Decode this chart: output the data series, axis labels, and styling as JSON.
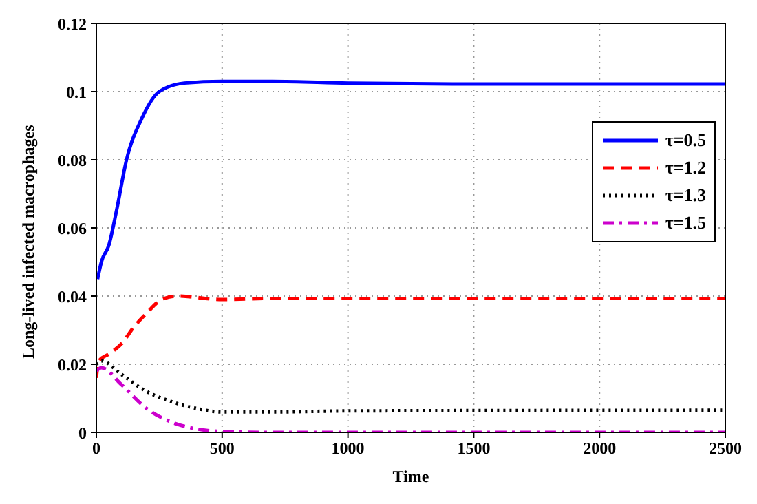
{
  "chart_data": {
    "type": "line",
    "xlabel": "Time",
    "ylabel": "Long-lived infected macrophages",
    "xlim": [
      0,
      2500
    ],
    "xticks": [
      0,
      500,
      1000,
      1500,
      2000,
      2500
    ],
    "ylim": [
      0,
      0.12
    ],
    "yticks": [
      0,
      0.02,
      0.04,
      0.06,
      0.08,
      0.1,
      0.12
    ],
    "grid": true,
    "legend": "right",
    "series": [
      {
        "name": "τ=0.5",
        "color": "#0000ff",
        "line_style": "solid",
        "x": [
          5,
          20,
          50,
          80,
          120,
          180,
          250,
          350,
          500,
          700,
          1000,
          1500,
          2500
        ],
        "values": [
          0.045,
          0.05,
          0.055,
          0.065,
          0.08,
          0.092,
          0.1,
          0.1025,
          0.103,
          0.103,
          0.1025,
          0.1022,
          0.1022
        ]
      },
      {
        "name": "τ=1.2",
        "color": "#ff0000",
        "line_style": "dashed",
        "x": [
          0,
          10,
          50,
          100,
          150,
          200,
          260,
          320,
          500,
          700,
          1000,
          2500
        ],
        "values": [
          0.016,
          0.021,
          0.023,
          0.026,
          0.031,
          0.035,
          0.039,
          0.04,
          0.039,
          0.0393,
          0.0393,
          0.0393
        ]
      },
      {
        "name": "τ=1.3",
        "color": "#000000",
        "line_style": "dotted",
        "x": [
          0,
          20,
          100,
          200,
          300,
          400,
          500,
          700,
          1000,
          2500
        ],
        "values": [
          0.02,
          0.021,
          0.017,
          0.012,
          0.009,
          0.007,
          0.006,
          0.006,
          0.0063,
          0.0065
        ]
      },
      {
        "name": "τ=1.5",
        "color": "#cc00cc",
        "line_style": "dashdot",
        "x": [
          0,
          20,
          100,
          200,
          300,
          400,
          500,
          700,
          2500
        ],
        "values": [
          0.018,
          0.019,
          0.014,
          0.007,
          0.003,
          0.001,
          0.0003,
          0,
          0
        ]
      }
    ]
  }
}
